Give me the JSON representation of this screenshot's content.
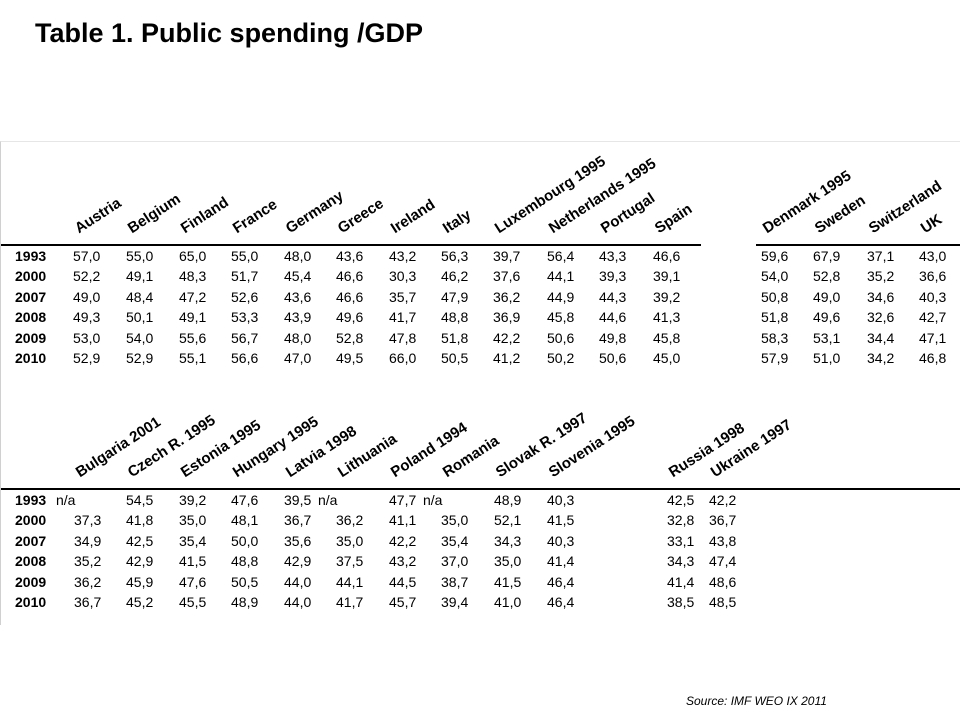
{
  "title": "Table 1. Public spending /GDP",
  "source": "Source: IMF WEO IX 2011",
  "years": [
    "1993",
    "2000",
    "2007",
    "2008",
    "2009",
    "2010"
  ],
  "table1": {
    "groupA": {
      "countries": [
        "Austria",
        "Belgium",
        "Finland",
        "France",
        "Germany",
        "Greece",
        "Ireland",
        "Italy",
        "Luxembourg 1995",
        "Netherlands 1995",
        "Portugal",
        "Spain"
      ],
      "rows": [
        [
          "57,0",
          "55,0",
          "65,0",
          "55,0",
          "48,0",
          "43,6",
          "43,2",
          "56,3",
          "39,7",
          "56,4",
          "43,3",
          "46,6"
        ],
        [
          "52,2",
          "49,1",
          "48,3",
          "51,7",
          "45,4",
          "46,6",
          "30,3",
          "46,2",
          "37,6",
          "44,1",
          "39,3",
          "39,1"
        ],
        [
          "49,0",
          "48,4",
          "47,2",
          "52,6",
          "43,6",
          "46,6",
          "35,7",
          "47,9",
          "36,2",
          "44,9",
          "44,3",
          "39,2"
        ],
        [
          "49,3",
          "50,1",
          "49,1",
          "53,3",
          "43,9",
          "49,6",
          "41,7",
          "48,8",
          "36,9",
          "45,8",
          "44,6",
          "41,3"
        ],
        [
          "53,0",
          "54,0",
          "55,6",
          "56,7",
          "48,0",
          "52,8",
          "47,8",
          "51,8",
          "42,2",
          "50,6",
          "49,8",
          "45,8"
        ],
        [
          "52,9",
          "52,9",
          "55,1",
          "56,6",
          "47,0",
          "49,5",
          "66,0",
          "50,5",
          "41,2",
          "50,2",
          "50,6",
          "45,0"
        ]
      ]
    },
    "groupB": {
      "countries": [
        "Denmark 1995",
        "Sweden",
        "Switzerland",
        "UK"
      ],
      "rows": [
        [
          "59,6",
          "67,9",
          "37,1",
          "43,0"
        ],
        [
          "54,0",
          "52,8",
          "35,2",
          "36,6"
        ],
        [
          "50,8",
          "49,0",
          "34,6",
          "40,3"
        ],
        [
          "51,8",
          "49,6",
          "32,6",
          "42,7"
        ],
        [
          "58,3",
          "53,1",
          "34,4",
          "47,1"
        ],
        [
          "57,9",
          "51,0",
          "34,2",
          "46,8"
        ]
      ]
    },
    "groupC": {
      "countries": [
        "Bulgaria 2001",
        "Czech R. 1995",
        "Estonia 1995",
        "Hungary 1995",
        "Latvia 1998",
        "Lithuania",
        "Poland 1994",
        "Romania",
        "Slovak R. 1997",
        "Slovenia 1995"
      ],
      "rows": [
        [
          "n/a",
          "54,5",
          "39,2",
          "47,6",
          "39,5",
          "n/a",
          "47,7",
          "n/a",
          "48,9",
          "40,3"
        ],
        [
          "37,3",
          "41,8",
          "35,0",
          "48,1",
          "36,7",
          "36,2",
          "41,1",
          "35,0",
          "52,1",
          "41,5"
        ],
        [
          "34,9",
          "42,5",
          "35,4",
          "50,0",
          "35,6",
          "35,0",
          "42,2",
          "35,4",
          "34,3",
          "40,3"
        ],
        [
          "35,2",
          "42,9",
          "41,5",
          "48,8",
          "42,9",
          "37,5",
          "43,2",
          "37,0",
          "35,0",
          "41,4"
        ],
        [
          "36,2",
          "45,9",
          "47,6",
          "50,5",
          "44,0",
          "44,1",
          "44,5",
          "38,7",
          "41,5",
          "46,4"
        ],
        [
          "36,7",
          "45,2",
          "45,5",
          "48,9",
          "44,0",
          "41,7",
          "45,7",
          "39,4",
          "41,0",
          "46,4"
        ]
      ]
    },
    "groupD": {
      "countries": [
        "Russia 1998",
        "Ukraine 1997"
      ],
      "rows": [
        [
          "42,5",
          "42,2"
        ],
        [
          "32,8",
          "36,7"
        ],
        [
          "33,1",
          "43,8"
        ],
        [
          "34,3",
          "47,4"
        ],
        [
          "41,4",
          "48,6"
        ],
        [
          "38,5",
          "48,5"
        ]
      ]
    }
  }
}
